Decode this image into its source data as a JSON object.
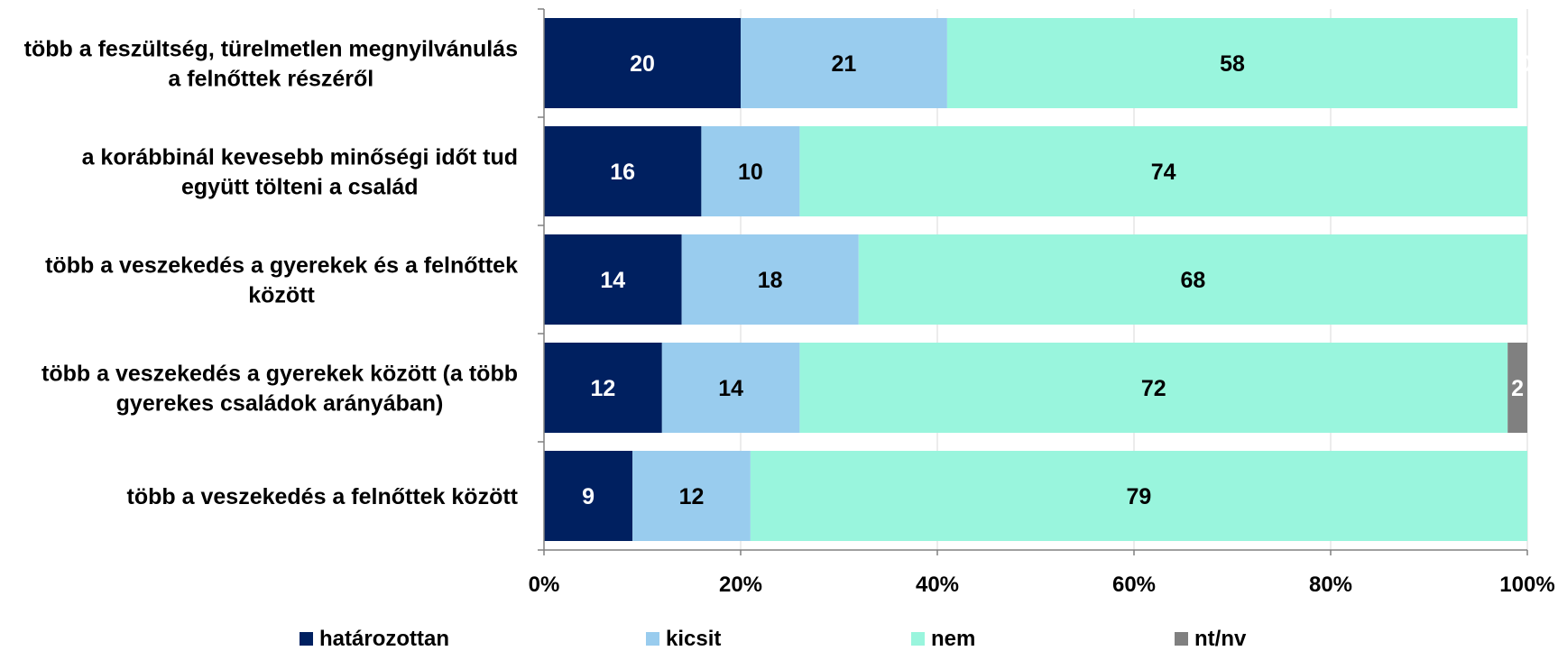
{
  "chart_data": {
    "type": "bar",
    "orientation": "horizontal",
    "stacked": "percent",
    "categories": [
      [
        "több a feszültség, türelmetlen megnyilvánulás",
        "a felnőttek részéről"
      ],
      [
        "a korábbinál kevesebb minőségi időt tud",
        "együtt tölteni a család"
      ],
      [
        "több a veszekedés a gyerekek és a felnőttek",
        "között"
      ],
      [
        "több a veszekedés a gyerekek között (a több",
        "gyerekes családok arányában)"
      ],
      [
        "több a veszekedés a felnőttek között"
      ]
    ],
    "series": [
      {
        "name": "határozottan",
        "color": "#002060",
        "label_color": "#ffffff",
        "values": [
          20,
          16,
          14,
          12,
          9
        ]
      },
      {
        "name": "kicsit",
        "color": "#99CCEE",
        "label_color": "#000000",
        "values": [
          21,
          10,
          18,
          14,
          12
        ]
      },
      {
        "name": "nem",
        "color": "#99F5DD",
        "label_color": "#000000",
        "values": [
          58,
          74,
          68,
          72,
          79
        ]
      },
      {
        "name": "nt/nv",
        "color": "#808080",
        "label_color": "#ffffff",
        "values": [
          0,
          0,
          0,
          2,
          0
        ]
      }
    ],
    "data_labels": [
      [
        "20",
        "21",
        "58",
        "0"
      ],
      [
        "16",
        "10",
        "74",
        "0"
      ],
      [
        "14",
        "18",
        "68",
        "0"
      ],
      [
        "12",
        "14",
        "72",
        "2"
      ],
      [
        "9",
        "12",
        "79",
        "0"
      ]
    ],
    "xlim": [
      0,
      100
    ],
    "x_ticks": [
      0,
      20,
      40,
      60,
      80,
      100
    ],
    "x_tick_labels": [
      "0%",
      "20%",
      "40%",
      "60%",
      "80%",
      "100%"
    ],
    "grid": "vertical",
    "legend_position": "bottom"
  }
}
